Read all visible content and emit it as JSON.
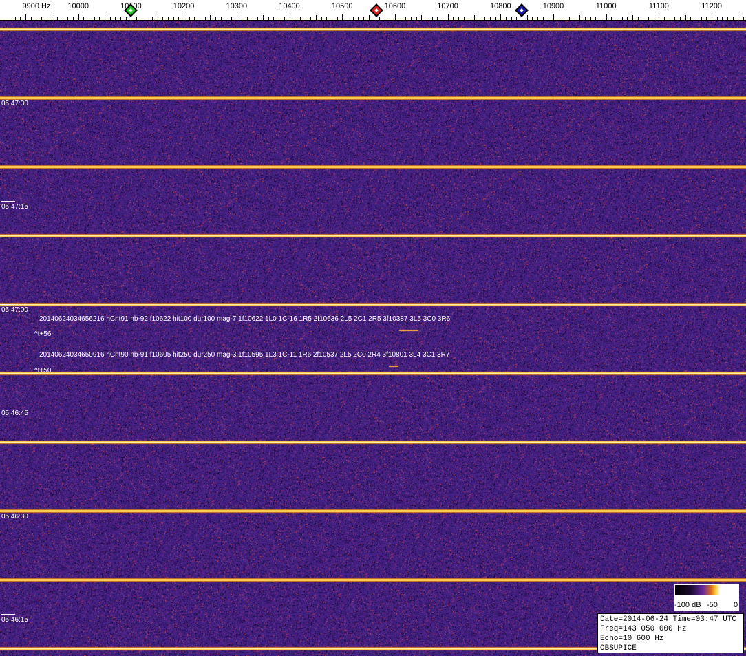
{
  "chart_data": {
    "type": "heatmap",
    "xlabel": "Hz",
    "x_ticks": [
      9900,
      10000,
      10100,
      10200,
      10300,
      10400,
      10500,
      10600,
      10700,
      10800,
      10900,
      11000,
      11100,
      11200
    ],
    "x_tick_labels": [
      "9900 Hz",
      "10000",
      "10100",
      "10200",
      "10300",
      "10400",
      "10500",
      "10600",
      "10700",
      "10800",
      "10900",
      "11000",
      "11100",
      "11200"
    ],
    "xlim": [
      9880,
      11265
    ],
    "time_labels": [
      "05:47:30",
      "05:47:15",
      "05:47:00",
      "05:46:45",
      "05:46:30",
      "05:46:15"
    ],
    "markers": [
      {
        "freq": 10100,
        "color": "#22cc22"
      },
      {
        "freq": 10565,
        "color": "#dd2222"
      },
      {
        "freq": 10840,
        "color": "#1a1aaa"
      }
    ],
    "colorscale": {
      "min": -100,
      "max": 0,
      "labels": [
        "-100 dB",
        "-50",
        "0"
      ]
    },
    "background_color": "#3a1f78",
    "line_color": "#ffd24a"
  },
  "detections": [
    {
      "text": "20140624034656216 hCnt91 nb-92 f10622 hit100 dur100 mag-7 1f10622 1L0 1C-16 1R5 2f10636 2L5 2C1 2R5 3f10387 3L5 3C0 3R6",
      "offset": "^t+56"
    },
    {
      "text": "20140624034650916 hCnt90 nb-91 f10605 hit250 dur250 mag-3 1f10595 1L3 1C-11 1R6 2f10537 2L5 2C0 2R4 3f10801 3L4 3C1 3R7",
      "offset": "^t+50"
    }
  ],
  "info": {
    "line1": "Date=2014-06-24 Time=03:47 UTC",
    "line2": "Freq=143 050 000 Hz",
    "line3": "Echo=10 600 Hz",
    "line4": "OBSUPICE"
  }
}
